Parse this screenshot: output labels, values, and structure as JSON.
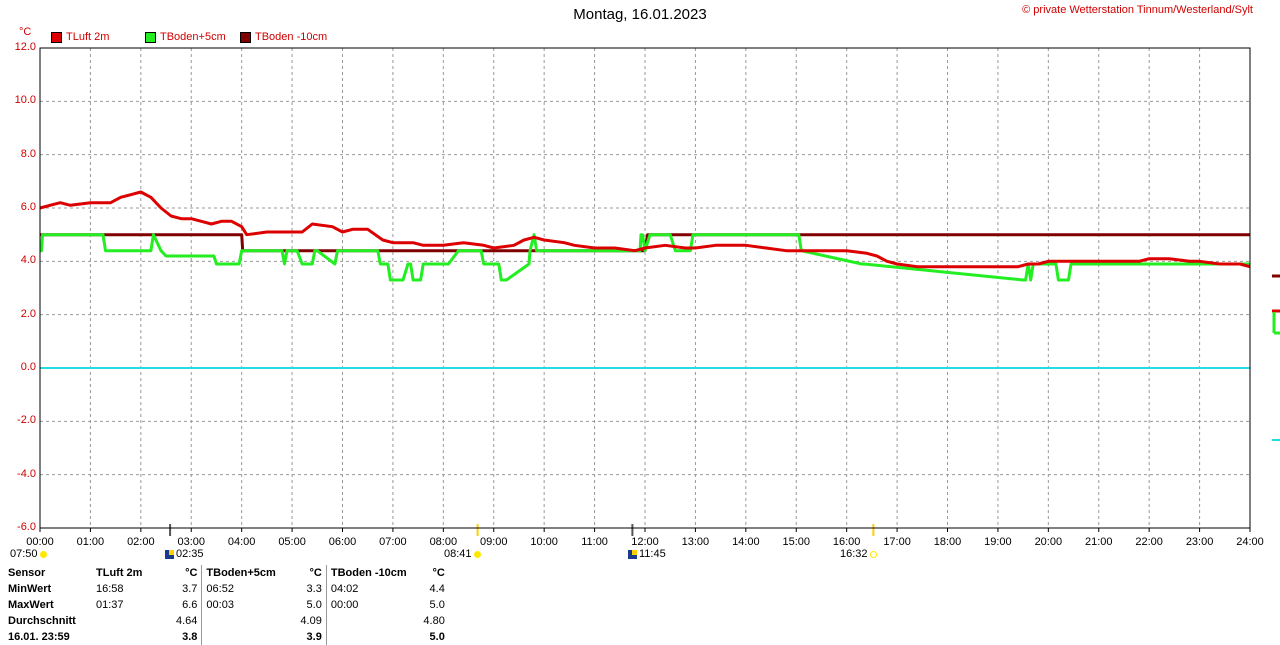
{
  "header": {
    "title": "Montag, 16.01.2023",
    "copyright": "© private Wetterstation Tinnum/Westerland/Sylt",
    "unit": "°C"
  },
  "legend": [
    {
      "label": "TLuft 2m",
      "color": "#dd0000"
    },
    {
      "label": "TBoden+5cm",
      "color": "#22ee22"
    },
    {
      "label": "TBoden -10cm",
      "color": "#800000"
    }
  ],
  "astro": {
    "sunrise": "07:50",
    "moonrise": "02:35",
    "sun_noon": "08:41",
    "moonset": "11:45",
    "sunset": "16:32"
  },
  "stats": {
    "headers": [
      "Sensor",
      "TLuft 2m",
      "°C",
      "TBoden+5cm",
      "°C",
      "TBoden -10cm",
      "°C"
    ],
    "rows": [
      {
        "label": "MinWert",
        "t1": "16:58",
        "v1": "3.7",
        "t2": "06:52",
        "v2": "3.3",
        "t3": "04:02",
        "v3": "4.4"
      },
      {
        "label": "MaxWert",
        "t1": "01:37",
        "v1": "6.6",
        "t2": "00:03",
        "v2": "5.0",
        "t3": "00:00",
        "v3": "5.0"
      },
      {
        "label": "Durchschnitt",
        "t1": "",
        "v1": "4.64",
        "t2": "",
        "v2": "4.09",
        "t3": "",
        "v3": "4.80"
      },
      {
        "label": "16.01. 23:59",
        "t1": "",
        "v1": "3.8",
        "t2": "",
        "v2": "3.9",
        "t3": "",
        "v3": "5.0"
      }
    ]
  },
  "chart_data": {
    "type": "line",
    "title": "Montag, 16.01.2023",
    "ylabel": "°C",
    "xlabel": "",
    "ylim": [
      -6.0,
      12.0
    ],
    "xlim": [
      0,
      24
    ],
    "grid": true,
    "legend_position": "top-left",
    "y_ticks": [
      "12.0",
      "10.0",
      "8.0",
      "6.0",
      "4.0",
      "2.0",
      "0.0",
      "-2.0",
      "-4.0",
      "-6.0"
    ],
    "x_ticks": [
      "00:00",
      "01:00",
      "02:00",
      "03:00",
      "04:00",
      "05:00",
      "06:00",
      "07:00",
      "08:00",
      "09:00",
      "10:00",
      "11:00",
      "12:00",
      "13:00",
      "14:00",
      "15:00",
      "16:00",
      "17:00",
      "18:00",
      "19:00",
      "20:00",
      "21:00",
      "22:00",
      "23:00",
      "24:00"
    ],
    "reference_line": {
      "y": 0.0,
      "color": "#22dddd"
    },
    "series": [
      {
        "name": "TLuft 2m",
        "color": "#dd0000",
        "x": [
          0,
          0.2,
          0.4,
          0.6,
          1.0,
          1.2,
          1.4,
          1.6,
          1.8,
          2.0,
          2.2,
          2.4,
          2.6,
          2.8,
          3.0,
          3.2,
          3.4,
          3.6,
          3.8,
          4.0,
          4.1,
          4.5,
          5.0,
          5.2,
          5.4,
          5.8,
          6.0,
          6.2,
          6.5,
          6.8,
          7.0,
          7.4,
          7.6,
          8.0,
          8.4,
          8.8,
          9.0,
          9.4,
          9.6,
          9.8,
          10.0,
          10.4,
          10.6,
          11.0,
          11.4,
          11.8,
          12.0,
          12.4,
          12.8,
          13.0,
          13.4,
          13.8,
          14.0,
          14.4,
          14.8,
          15.0,
          15.4,
          15.8,
          16.0,
          16.4,
          16.6,
          16.8,
          17.0,
          17.4,
          17.8,
          18.0,
          18.4,
          18.8,
          19.2,
          19.4,
          19.6,
          19.8,
          20.0,
          20.4,
          20.8,
          21.0,
          21.4,
          21.8,
          22.0,
          22.4,
          22.8,
          23.0,
          23.4,
          23.8,
          24.0
        ],
        "values": [
          6.0,
          6.1,
          6.2,
          6.1,
          6.2,
          6.2,
          6.2,
          6.4,
          6.5,
          6.6,
          6.4,
          6.0,
          5.7,
          5.6,
          5.6,
          5.5,
          5.4,
          5.5,
          5.5,
          5.3,
          5.0,
          5.1,
          5.1,
          5.1,
          5.4,
          5.3,
          5.1,
          5.2,
          5.2,
          4.8,
          4.7,
          4.7,
          4.6,
          4.6,
          4.7,
          4.6,
          4.5,
          4.6,
          4.8,
          4.9,
          4.8,
          4.7,
          4.6,
          4.5,
          4.5,
          4.4,
          4.5,
          4.6,
          4.5,
          4.5,
          4.6,
          4.6,
          4.6,
          4.5,
          4.4,
          4.4,
          4.4,
          4.4,
          4.4,
          4.3,
          4.2,
          4.0,
          3.9,
          3.8,
          3.8,
          3.8,
          3.8,
          3.8,
          3.8,
          3.8,
          3.9,
          3.9,
          4.0,
          4.0,
          4.0,
          4.0,
          4.0,
          4.0,
          4.1,
          4.1,
          4.0,
          4.0,
          3.9,
          3.9,
          3.8
        ]
      },
      {
        "name": "TBoden+5cm",
        "color": "#22ee22",
        "x": [
          0,
          0.03,
          0.05,
          1.25,
          1.3,
          2.2,
          2.25,
          2.4,
          2.5,
          3.45,
          3.5,
          3.95,
          4.0,
          4.8,
          4.85,
          4.9,
          5.1,
          5.2,
          5.4,
          5.45,
          5.5,
          5.85,
          5.9,
          6.05,
          6.1,
          6.7,
          6.75,
          6.9,
          6.95,
          7.2,
          7.3,
          7.35,
          7.4,
          7.55,
          7.6,
          8.0,
          8.1,
          8.3,
          8.35,
          8.75,
          8.8,
          9.1,
          9.15,
          9.2,
          9.25,
          9.7,
          9.72,
          9.8,
          9.85,
          11.9,
          11.92,
          11.95,
          12.0,
          12.1,
          12.5,
          12.6,
          12.9,
          12.95,
          15.05,
          15.1,
          16.3,
          16.35,
          19.5,
          19.55,
          19.6,
          19.65,
          19.7,
          19.75,
          20.15,
          20.2,
          20.4,
          20.45,
          24.0
        ],
        "values": [
          4.4,
          4.4,
          5.0,
          5.0,
          4.4,
          4.4,
          5.0,
          4.4,
          4.2,
          4.2,
          3.9,
          3.9,
          4.4,
          4.4,
          3.9,
          4.4,
          4.4,
          3.9,
          3.9,
          4.4,
          4.4,
          3.9,
          4.4,
          4.4,
          4.4,
          4.4,
          3.9,
          3.9,
          3.3,
          3.3,
          3.9,
          3.9,
          3.3,
          3.3,
          3.9,
          3.9,
          3.9,
          4.4,
          4.4,
          4.4,
          3.9,
          3.9,
          3.3,
          3.3,
          3.3,
          3.9,
          4.4,
          5.0,
          4.4,
          4.4,
          5.0,
          5.0,
          4.4,
          5.0,
          5.0,
          4.4,
          4.4,
          5.0,
          5.0,
          4.4,
          3.9,
          3.9,
          3.3,
          3.3,
          3.9,
          3.3,
          3.9,
          3.9,
          3.9,
          3.3,
          3.3,
          3.9,
          3.9
        ]
      },
      {
        "name": "TBoden -10cm",
        "color": "#800000",
        "x": [
          0,
          4.0,
          4.02,
          12.0,
          12.05,
          24.0
        ],
        "values": [
          5.0,
          5.0,
          4.4,
          4.4,
          5.0,
          5.0
        ]
      }
    ]
  }
}
